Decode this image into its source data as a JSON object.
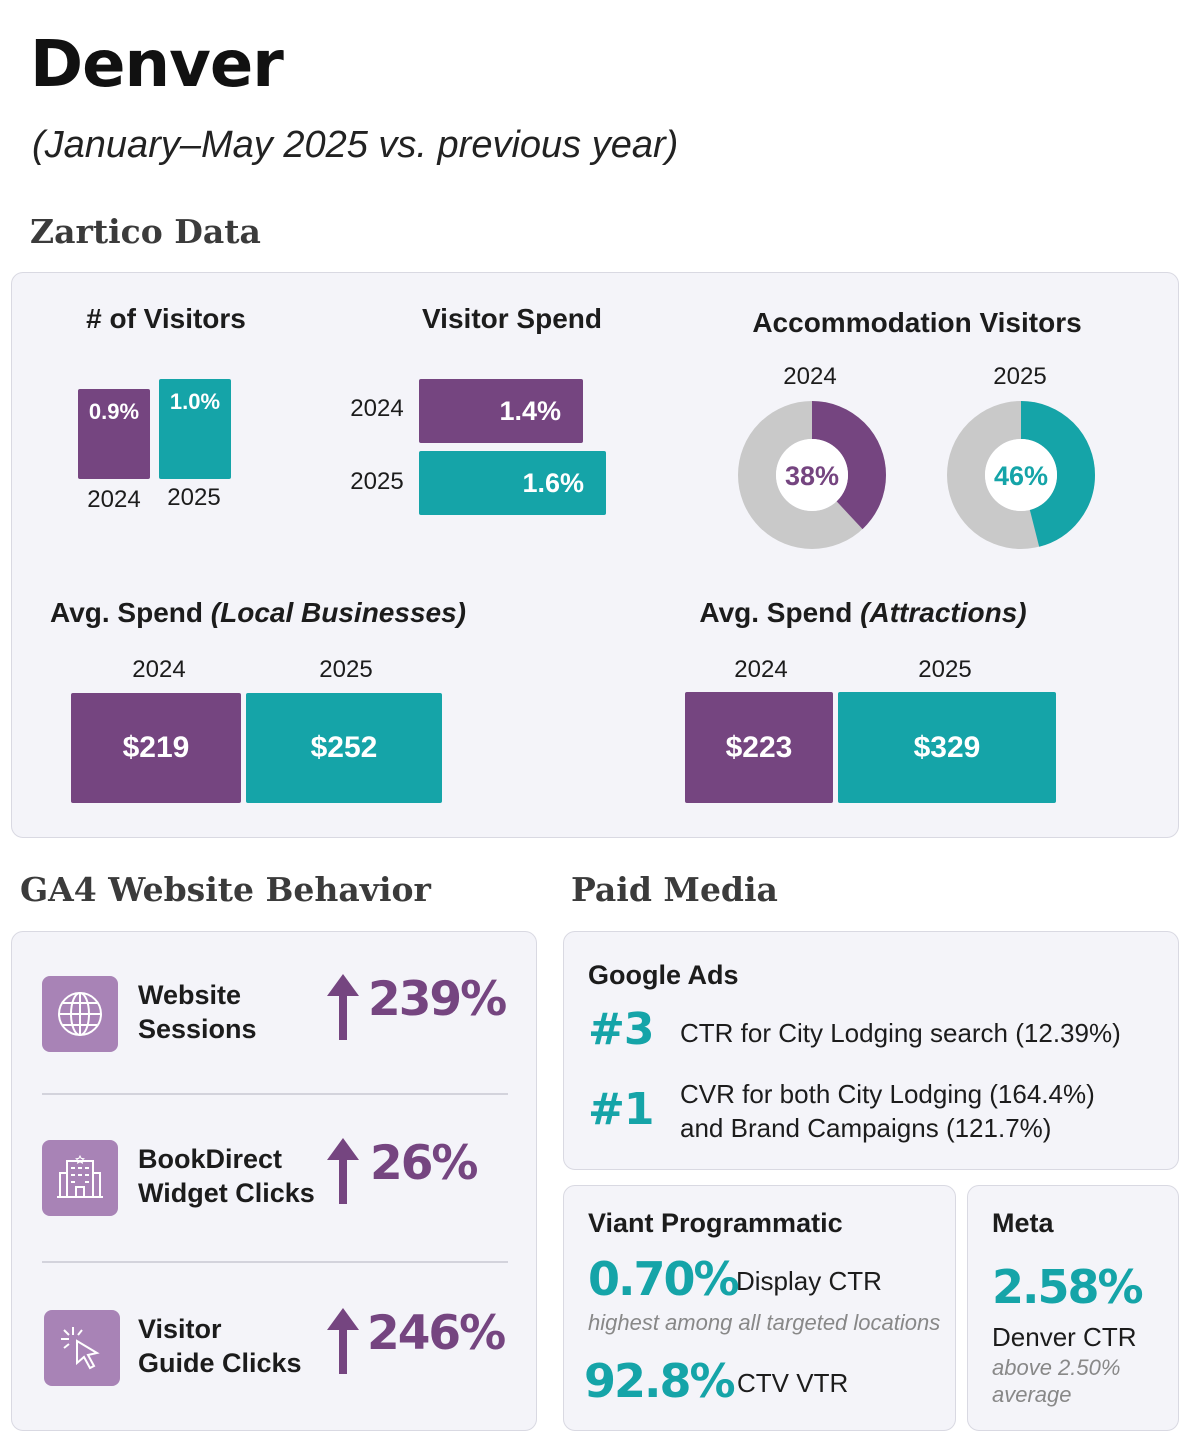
{
  "header": {
    "title": "Denver",
    "subtitle": "(January–May 2025 vs. previous year)"
  },
  "zartico": {
    "section_title": "Zartico Data"
  },
  "chart_data": [
    {
      "type": "bar",
      "title": "# of Visitors",
      "categories": [
        "2024",
        "2025"
      ],
      "values": [
        0.9,
        1.0
      ],
      "value_labels": [
        "0.9%",
        "1.0%"
      ],
      "unit": "%"
    },
    {
      "type": "bar",
      "orientation": "horizontal",
      "title": "Visitor Spend",
      "categories": [
        "2024",
        "2025"
      ],
      "values": [
        1.4,
        1.6
      ],
      "value_labels": [
        "1.4%",
        "1.6%"
      ],
      "unit": "%"
    },
    {
      "type": "pie",
      "title": "Accommodation Visitors",
      "charts": [
        {
          "label": "2024",
          "value": 38,
          "value_label": "38%"
        },
        {
          "label": "2025",
          "value": 46,
          "value_label": "46%"
        }
      ]
    },
    {
      "type": "bar",
      "title": "Avg. Spend",
      "title_qualifier": "(Local Businesses)",
      "categories": [
        "2024",
        "2025"
      ],
      "values": [
        219,
        252
      ],
      "value_labels": [
        "$219",
        "$252"
      ],
      "unit": "$"
    },
    {
      "type": "bar",
      "title": "Avg. Spend",
      "title_qualifier": "(Attractions)",
      "categories": [
        "2024",
        "2025"
      ],
      "values": [
        223,
        329
      ],
      "value_labels": [
        "$223",
        "$329"
      ],
      "unit": "$"
    }
  ],
  "ga4": {
    "section_title": "GA4 Website Behavior",
    "rows": [
      {
        "icon": "globe-icon",
        "label_line1": "Website",
        "label_line2": "Sessions",
        "value": "239%"
      },
      {
        "icon": "hotel-building-icon",
        "label_line1": "BookDirect",
        "label_line2": "Widget Clicks",
        "value": "26%"
      },
      {
        "icon": "cursor-click-icon",
        "label_line1": "Visitor",
        "label_line2": "Guide Clicks",
        "value": "246%"
      }
    ]
  },
  "paid_media": {
    "section_title": "Paid Media",
    "google_ads": {
      "heading": "Google Ads",
      "items": [
        {
          "rank": "#3",
          "line1": "CTR for City Lodging search (12.39%)",
          "line2": ""
        },
        {
          "rank": "#1",
          "line1": "CVR for both City Lodging (164.4%)",
          "line2": "and Brand Campaigns (121.7%)"
        }
      ]
    },
    "viant": {
      "heading": "Viant Programmatic",
      "metric1": "0.70%",
      "metric1_label": "Display CTR",
      "metric1_note": "highest among all targeted locations",
      "metric2": "92.8%",
      "metric2_label": "CTV VTR"
    },
    "meta": {
      "heading": "Meta",
      "metric": "2.58%",
      "metric_label": "Denver CTR",
      "note_line1": "above 2.50%",
      "note_line2": "average"
    }
  },
  "colors": {
    "purple": "#754580",
    "teal": "#15a4a8",
    "donut_bg": "#c9c9c9",
    "icon_bg": "#a883b6"
  }
}
